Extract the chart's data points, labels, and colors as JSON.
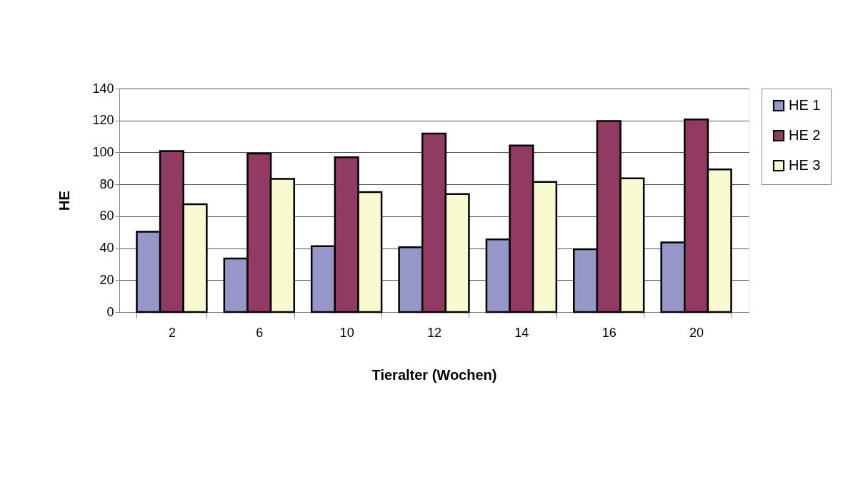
{
  "chart_data": {
    "type": "bar",
    "xlabel": "Tieralter (Wochen)",
    "ylabel": "HE",
    "categories": [
      "2",
      "6",
      "10",
      "12",
      "14",
      "16",
      "20"
    ],
    "series": [
      {
        "name": "HE 1",
        "color": "#9696c8",
        "values": [
          50.3,
          33.6,
          41.3,
          40.6,
          45.5,
          39.4,
          43.6
        ]
      },
      {
        "name": "HE 2",
        "color": "#923a62",
        "values": [
          100.9,
          99.3,
          96.9,
          111.8,
          104.3,
          119.7,
          120.6
        ]
      },
      {
        "name": "HE 3",
        "color": "#fafad0",
        "values": [
          67.5,
          83.4,
          75.1,
          73.9,
          81.5,
          83.7,
          89.4
        ]
      }
    ],
    "ylim": [
      0,
      140
    ],
    "yticks": [
      0,
      20,
      40,
      60,
      80,
      100,
      120,
      140
    ],
    "grid": "y",
    "legend": "right"
  }
}
